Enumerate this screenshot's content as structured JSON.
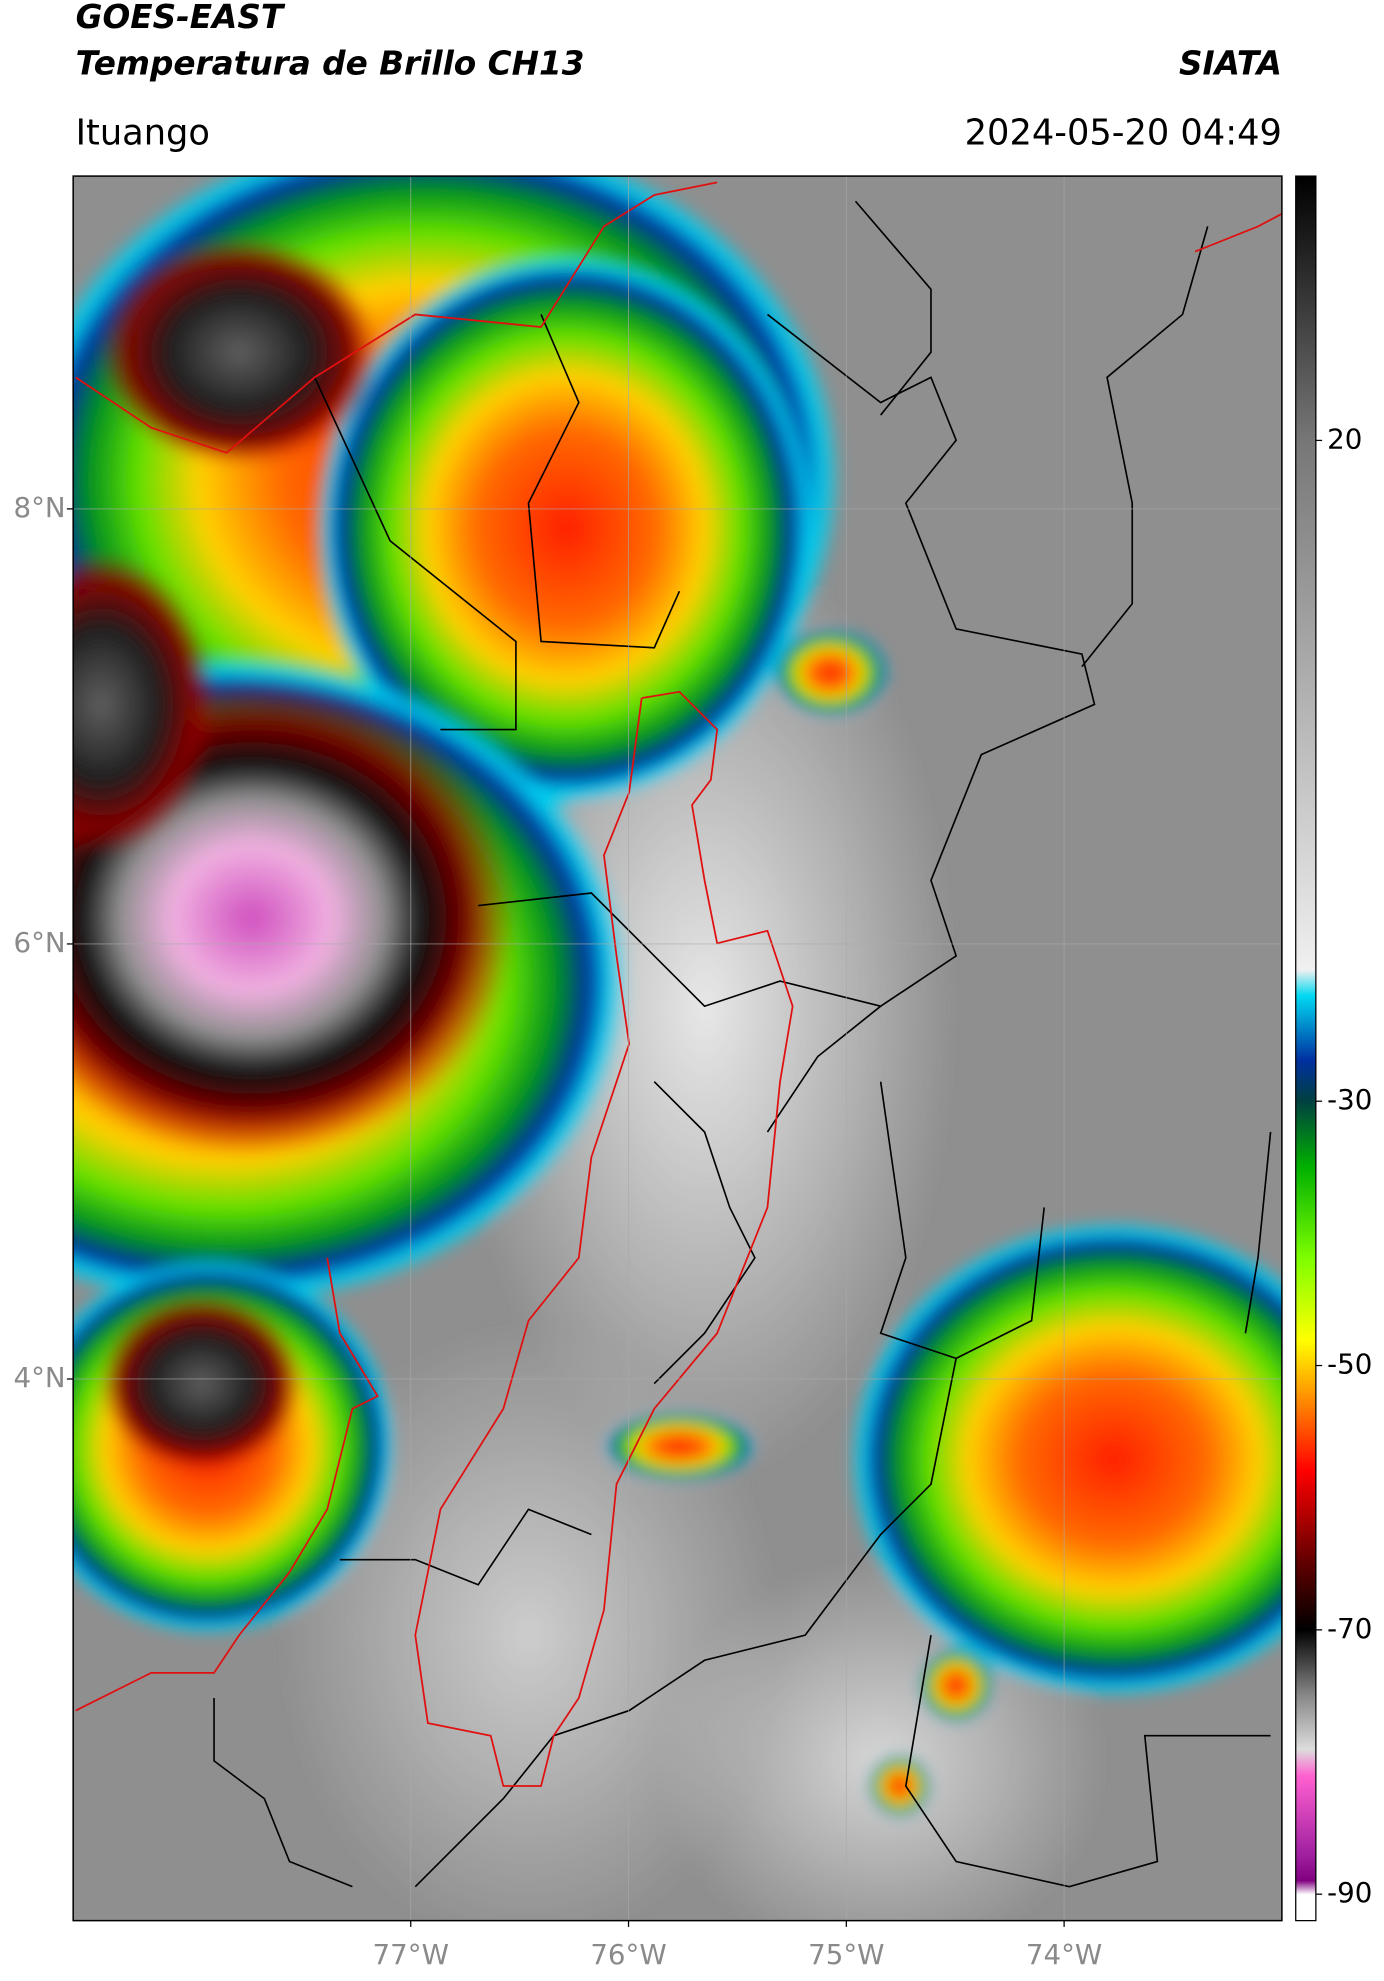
{
  "header": {
    "title_line1": "GOES-EAST",
    "title_line2": "Temperatura de Brillo CH13",
    "source": "SIATA",
    "region": "Ituango",
    "datetime": "2024-05-20 04:49"
  },
  "map": {
    "lat_range": [
      1.51,
      9.53
    ],
    "lon_range": [
      -78.55,
      -73.0
    ],
    "lat_ticks": [
      {
        "value": 8,
        "label": "8°N"
      },
      {
        "value": 6,
        "label": "6°N"
      },
      {
        "value": 4,
        "label": "4°N"
      }
    ],
    "lon_ticks": [
      {
        "value": -77,
        "label": "77°W"
      },
      {
        "value": -76,
        "label": "76°W"
      },
      {
        "value": -75,
        "label": "75°W"
      },
      {
        "value": -74,
        "label": "74°W"
      }
    ],
    "grid": true
  },
  "colorbar": {
    "range": [
      -92,
      40
    ],
    "ticks": [
      20,
      -30,
      -50,
      -70,
      -90
    ]
  }
}
